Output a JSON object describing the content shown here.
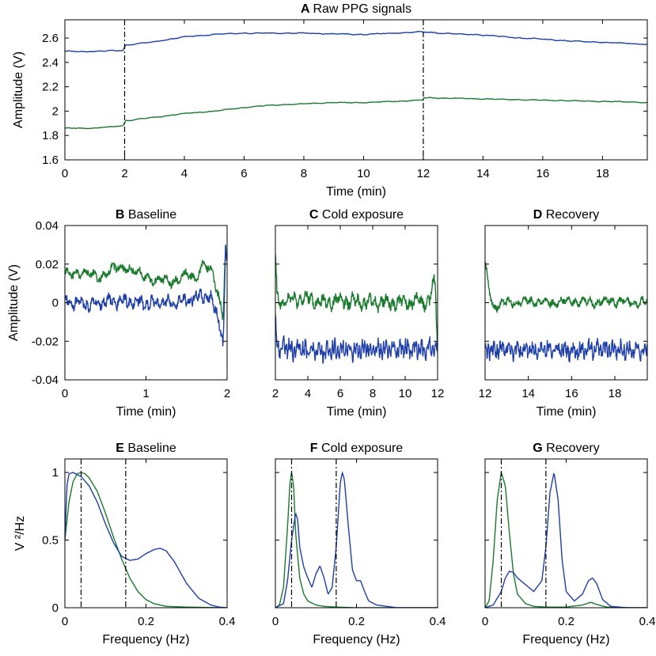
{
  "figure": {
    "colors": {
      "blue": "#1f3fa8",
      "green": "#1a7a2e"
    }
  },
  "chart_data": [
    {
      "id": "A",
      "type": "line",
      "letter": "A",
      "title": "Raw PPG signals",
      "xlabel": "Time (min)",
      "ylabel": "Amplitude (V)",
      "xlim": [
        0,
        19.5
      ],
      "ylim": [
        1.6,
        2.75
      ],
      "xticks": [
        0,
        2,
        4,
        6,
        8,
        10,
        12,
        14,
        16,
        18
      ],
      "xticklabels": [
        "0",
        "2",
        "4",
        "6",
        "8",
        "10",
        "12",
        "14",
        "16",
        "18"
      ],
      "yticks": [
        1.6,
        1.8,
        2.0,
        2.2,
        2.4,
        2.6
      ],
      "yticklabels": [
        "1.6",
        "1.8",
        "2",
        "2.2",
        "2.4",
        "2.6"
      ],
      "vlines": [
        2,
        12
      ],
      "series": [
        {
          "name": "blue",
          "color": "#1f3fa8",
          "x": [
            0,
            1,
            1.99,
            2,
            3,
            4,
            5,
            6,
            7,
            8,
            9,
            10,
            11,
            11.99,
            12,
            13,
            14,
            15,
            16,
            17,
            18,
            19,
            19.5
          ],
          "y": [
            2.49,
            2.49,
            2.5,
            2.54,
            2.57,
            2.61,
            2.63,
            2.64,
            2.64,
            2.64,
            2.635,
            2.63,
            2.64,
            2.65,
            2.65,
            2.635,
            2.625,
            2.605,
            2.59,
            2.575,
            2.565,
            2.555,
            2.55
          ],
          "noise": 0.004
        },
        {
          "name": "green",
          "color": "#1a7a2e",
          "x": [
            0,
            1,
            1.99,
            2,
            3,
            4,
            5,
            6,
            7,
            8,
            9,
            10,
            11,
            11.99,
            12,
            13,
            14,
            15,
            16,
            17,
            18,
            19,
            19.5
          ],
          "y": [
            1.86,
            1.86,
            1.88,
            1.92,
            1.95,
            1.98,
            2.0,
            2.03,
            2.05,
            2.06,
            2.07,
            2.07,
            2.08,
            2.09,
            2.11,
            2.105,
            2.1,
            2.095,
            2.09,
            2.085,
            2.08,
            2.075,
            2.07
          ],
          "noise": 0.0035
        }
      ]
    },
    {
      "id": "B",
      "type": "line",
      "letter": "B",
      "title": "Baseline",
      "xlabel": "Time (min)",
      "ylabel": "Amplitude (V)",
      "xlim": [
        0,
        2
      ],
      "ylim": [
        -0.04,
        0.04
      ],
      "xticks": [
        0,
        1,
        2
      ],
      "xticklabels": [
        "0",
        "1",
        "2"
      ],
      "yticks": [
        -0.04,
        -0.02,
        0,
        0.02,
        0.04
      ],
      "yticklabels": [
        "-0.04",
        "-0.02",
        "0",
        "0.02",
        "0.04"
      ],
      "series": [
        {
          "name": "green",
          "color": "#1a7a2e",
          "x": [
            0,
            0.2,
            0.4,
            0.6,
            0.75,
            0.9,
            1.1,
            1.3,
            1.5,
            1.6,
            1.7,
            1.8,
            1.9,
            1.95,
            1.98,
            2.0
          ],
          "y": [
            0.014,
            0.016,
            0.013,
            0.017,
            0.019,
            0.015,
            0.012,
            0.011,
            0.014,
            0.012,
            0.021,
            0.016,
            0.003,
            -0.008,
            0.032,
            0.022
          ],
          "noise": 0.003,
          "freq": 18
        },
        {
          "name": "blue",
          "color": "#1f3fa8",
          "x": [
            0,
            0.3,
            0.6,
            0.9,
            1.2,
            1.5,
            1.7,
            1.8,
            1.9,
            1.95,
            1.98,
            2.0
          ],
          "y": [
            0.001,
            -0.001,
            0.001,
            0.0,
            0.0,
            0.001,
            0.004,
            0.002,
            -0.008,
            -0.024,
            0.028,
            0.018
          ],
          "noise": 0.0035,
          "freq": 30
        }
      ]
    },
    {
      "id": "C",
      "type": "line",
      "letter": "C",
      "title": "Cold exposure",
      "xlabel": "Time (min)",
      "xlim": [
        2,
        12
      ],
      "ylim": [
        -0.04,
        0.04
      ],
      "xticks": [
        2,
        4,
        6,
        8,
        10,
        12
      ],
      "xticklabels": [
        "2",
        "4",
        "6",
        "8",
        "10",
        "12"
      ],
      "yticks": [
        -0.04,
        -0.02,
        0,
        0.02,
        0.04
      ],
      "series": [
        {
          "name": "green",
          "color": "#1a7a2e",
          "x": [
            2,
            2.1,
            2.3,
            2.6,
            3,
            4,
            5,
            6,
            8,
            10,
            11.5,
            11.85,
            11.92,
            12
          ],
          "y": [
            0.024,
            0.003,
            0.0,
            0.002,
            0.001,
            0.002,
            0.0,
            0.001,
            0.0,
            0.0,
            0.001,
            0.012,
            -0.005,
            -0.026
          ],
          "noise": 0.004,
          "freq": 28
        },
        {
          "name": "blue",
          "color": "#1f3fa8",
          "x": [
            2,
            2.1,
            3,
            5,
            7,
            9,
            11,
            12
          ],
          "y": [
            -0.008,
            -0.023,
            -0.024,
            -0.025,
            -0.024,
            -0.024,
            -0.024,
            -0.023
          ],
          "noise": 0.005,
          "freq": 60
        }
      ]
    },
    {
      "id": "D",
      "type": "line",
      "letter": "D",
      "title": "Recovery",
      "xlabel": "Time (min)",
      "xlim": [
        12,
        19.5
      ],
      "ylim": [
        -0.04,
        0.04
      ],
      "xticks": [
        12,
        14,
        16,
        18
      ],
      "xticklabels": [
        "12",
        "14",
        "16",
        "18"
      ],
      "yticks": [
        -0.04,
        -0.02,
        0,
        0.02,
        0.04
      ],
      "series": [
        {
          "name": "green",
          "color": "#1a7a2e",
          "x": [
            12,
            12.2,
            12.4,
            12.6,
            13,
            14,
            15,
            16,
            17,
            18,
            19,
            19.5
          ],
          "y": [
            0.02,
            0.006,
            -0.003,
            -0.001,
            0.0,
            0.001,
            0.0,
            0.001,
            0.0,
            0.001,
            0.0,
            0.0
          ],
          "noise": 0.0025,
          "freq": 22
        },
        {
          "name": "blue",
          "color": "#1f3fa8",
          "x": [
            12,
            13,
            14,
            15,
            16,
            17,
            18,
            19,
            19.5
          ],
          "y": [
            -0.025,
            -0.024,
            -0.025,
            -0.024,
            -0.025,
            -0.024,
            -0.024,
            -0.025,
            -0.025
          ],
          "noise": 0.0045,
          "freq": 55
        }
      ]
    },
    {
      "id": "E",
      "type": "line",
      "letter": "E",
      "title": "Baseline",
      "xlabel": "Frequency (Hz)",
      "ylabel": "V ²/Hz",
      "xlim": [
        0,
        0.4
      ],
      "ylim": [
        0,
        1.1
      ],
      "xticks": [
        0,
        0.2,
        0.4
      ],
      "xticklabels": [
        "0",
        "0.2",
        "0.4"
      ],
      "yticks": [
        0,
        0.5,
        1
      ],
      "yticklabels": [
        "0",
        "0.5",
        "1"
      ],
      "vlines": [
        0.04,
        0.15
      ],
      "series": [
        {
          "name": "green",
          "color": "#1a7a2e",
          "x": [
            0,
            0.01,
            0.02,
            0.03,
            0.04,
            0.05,
            0.06,
            0.08,
            0.1,
            0.12,
            0.14,
            0.16,
            0.18,
            0.2,
            0.22,
            0.25,
            0.3,
            0.35,
            0.4
          ],
          "y": [
            0.5,
            0.78,
            0.93,
            0.99,
            1.0,
            0.99,
            0.96,
            0.86,
            0.7,
            0.52,
            0.36,
            0.22,
            0.12,
            0.06,
            0.03,
            0.01,
            0.005,
            0.002,
            0.0
          ]
        },
        {
          "name": "blue",
          "color": "#1f3fa8",
          "x": [
            0,
            0.005,
            0.01,
            0.02,
            0.04,
            0.06,
            0.08,
            0.1,
            0.12,
            0.14,
            0.16,
            0.18,
            0.2,
            0.22,
            0.235,
            0.25,
            0.27,
            0.3,
            0.33,
            0.36,
            0.38,
            0.4
          ],
          "y": [
            0.5,
            0.9,
            0.99,
            1.0,
            0.97,
            0.9,
            0.78,
            0.62,
            0.48,
            0.38,
            0.35,
            0.36,
            0.4,
            0.43,
            0.44,
            0.42,
            0.34,
            0.18,
            0.07,
            0.02,
            0.005,
            0.0
          ]
        }
      ]
    },
    {
      "id": "F",
      "type": "line",
      "letter": "F",
      "title": "Cold exposure",
      "xlabel": "Frequency (Hz)",
      "xlim": [
        0,
        0.4
      ],
      "ylim": [
        0,
        1.1
      ],
      "xticks": [
        0,
        0.2,
        0.4
      ],
      "xticklabels": [
        "0",
        "0.2",
        "0.4"
      ],
      "yticks": [
        0,
        0.5,
        1
      ],
      "vlines": [
        0.04,
        0.15
      ],
      "series": [
        {
          "name": "green",
          "color": "#1a7a2e",
          "x": [
            0,
            0.01,
            0.02,
            0.03,
            0.036,
            0.04,
            0.045,
            0.05,
            0.06,
            0.07,
            0.08,
            0.1,
            0.12,
            0.15,
            0.2,
            0.3,
            0.4
          ],
          "y": [
            0.0,
            0.02,
            0.15,
            0.6,
            0.92,
            1.0,
            0.9,
            0.55,
            0.22,
            0.1,
            0.05,
            0.02,
            0.01,
            0.005,
            0.0,
            0.0,
            0.0
          ]
        },
        {
          "name": "blue",
          "color": "#1f3fa8",
          "x": [
            0,
            0.02,
            0.03,
            0.04,
            0.05,
            0.055,
            0.06,
            0.07,
            0.08,
            0.09,
            0.1,
            0.11,
            0.12,
            0.13,
            0.14,
            0.15,
            0.16,
            0.165,
            0.17,
            0.18,
            0.19,
            0.2,
            0.21,
            0.22,
            0.23,
            0.25,
            0.3,
            0.4
          ],
          "y": [
            0.0,
            0.03,
            0.2,
            0.5,
            0.7,
            0.65,
            0.45,
            0.3,
            0.22,
            0.15,
            0.25,
            0.31,
            0.22,
            0.1,
            0.15,
            0.45,
            0.92,
            1.0,
            0.95,
            0.6,
            0.28,
            0.2,
            0.2,
            0.12,
            0.05,
            0.02,
            0.0,
            0.0
          ]
        }
      ]
    },
    {
      "id": "G",
      "type": "line",
      "letter": "G",
      "title": "Recovery",
      "xlabel": "Frequency (Hz)",
      "xlim": [
        0,
        0.4
      ],
      "ylim": [
        0,
        1.1
      ],
      "xticks": [
        0,
        0.2,
        0.4
      ],
      "xticklabels": [
        "0",
        "0.2",
        "0.4"
      ],
      "yticks": [
        0,
        0.5,
        1
      ],
      "vlines": [
        0.04,
        0.15
      ],
      "series": [
        {
          "name": "green",
          "color": "#1a7a2e",
          "x": [
            0,
            0.01,
            0.02,
            0.03,
            0.04,
            0.05,
            0.06,
            0.07,
            0.08,
            0.1,
            0.12,
            0.15,
            0.2,
            0.24,
            0.26,
            0.28,
            0.3,
            0.35,
            0.4
          ],
          "y": [
            0.0,
            0.05,
            0.35,
            0.8,
            1.0,
            0.9,
            0.55,
            0.25,
            0.1,
            0.03,
            0.01,
            0.005,
            0.005,
            0.02,
            0.04,
            0.02,
            0.005,
            0.0,
            0.0
          ]
        },
        {
          "name": "blue",
          "color": "#1f3fa8",
          "x": [
            0,
            0.02,
            0.04,
            0.05,
            0.06,
            0.07,
            0.08,
            0.1,
            0.12,
            0.14,
            0.15,
            0.16,
            0.17,
            0.18,
            0.19,
            0.2,
            0.22,
            0.24,
            0.255,
            0.265,
            0.275,
            0.29,
            0.31,
            0.35,
            0.4
          ],
          "y": [
            0.0,
            0.02,
            0.12,
            0.22,
            0.27,
            0.26,
            0.22,
            0.17,
            0.12,
            0.2,
            0.45,
            0.85,
            1.0,
            0.8,
            0.35,
            0.12,
            0.05,
            0.1,
            0.2,
            0.22,
            0.18,
            0.06,
            0.01,
            0.0,
            0.0
          ]
        }
      ]
    }
  ]
}
